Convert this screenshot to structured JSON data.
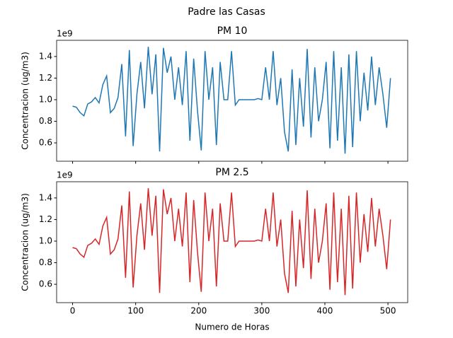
{
  "title": "Padre las Casas",
  "chart_data": [
    {
      "type": "line",
      "title": "PM 10",
      "ylabel": "Concentracion (ug/m3)",
      "y_offset_label": "1e9",
      "xlim": [
        -25.3,
        531.3
      ],
      "ylim": [
        0.43,
        1.55
      ],
      "xticks": [
        0,
        100,
        200,
        300,
        400,
        500
      ],
      "show_xticklabels": false,
      "yticks": [
        0.6,
        0.8,
        {
          "value": 1,
          "label": "1.0"
        },
        1.2,
        1.4
      ],
      "x": [
        0,
        6,
        12,
        18,
        24,
        30,
        36,
        42,
        48,
        54,
        60,
        66,
        72,
        78,
        84,
        90,
        96,
        102,
        108,
        114,
        120,
        126,
        132,
        138,
        144,
        150,
        156,
        162,
        168,
        174,
        180,
        186,
        192,
        198,
        204,
        210,
        216,
        222,
        228,
        234,
        240,
        246,
        252,
        258,
        264,
        270,
        276,
        282,
        288,
        294,
        300,
        306,
        312,
        318,
        324,
        330,
        336,
        342,
        348,
        354,
        360,
        366,
        372,
        378,
        384,
        390,
        396,
        402,
        408,
        414,
        420,
        426,
        432,
        438,
        444,
        450,
        456,
        462,
        468,
        474,
        480,
        486,
        492,
        498,
        504
      ],
      "series": [
        {
          "color": "#1f77b4",
          "values": [
            0.94,
            0.93,
            0.88,
            0.85,
            0.96,
            0.98,
            1.02,
            0.97,
            1.14,
            1.22,
            0.88,
            0.92,
            1.02,
            1.33,
            0.66,
            1.46,
            0.57,
            1.05,
            1.35,
            0.92,
            1.49,
            1.05,
            1.42,
            0.52,
            1.48,
            1.25,
            1.4,
            1.0,
            1.3,
            0.95,
            1.45,
            0.62,
            1.38,
            0.9,
            0.53,
            1.45,
            1.0,
            1.3,
            0.58,
            1.35,
            1.0,
            1.0,
            1.45,
            0.95,
            1.0,
            1.0,
            1.0,
            1.0,
            1.0,
            1.01,
            1.0,
            1.3,
            1.0,
            1.45,
            0.95,
            1.2,
            0.7,
            0.52,
            1.28,
            0.58,
            1.2,
            0.75,
            1.47,
            0.65,
            1.3,
            0.8,
            1.0,
            1.35,
            0.55,
            1.45,
            0.62,
            1.3,
            0.5,
            1.42,
            0.56,
            1.45,
            0.8,
            1.25,
            0.9,
            1.4,
            0.95,
            1.3,
            1.05,
            0.74,
            1.2
          ]
        }
      ]
    },
    {
      "type": "line",
      "title": "PM 2.5",
      "ylabel": "Concentracion (ug/m3)",
      "xlabel": "Numero de Horas",
      "y_offset_label": "1e9",
      "xlim": [
        -25.3,
        531.3
      ],
      "ylim": [
        0.43,
        1.55
      ],
      "xticks": [
        0,
        100,
        200,
        300,
        400,
        500
      ],
      "show_xticklabels": true,
      "yticks": [
        0.6,
        0.8,
        {
          "value": 1,
          "label": "1.0"
        },
        1.2,
        1.4
      ],
      "x": [
        0,
        6,
        12,
        18,
        24,
        30,
        36,
        42,
        48,
        54,
        60,
        66,
        72,
        78,
        84,
        90,
        96,
        102,
        108,
        114,
        120,
        126,
        132,
        138,
        144,
        150,
        156,
        162,
        168,
        174,
        180,
        186,
        192,
        198,
        204,
        210,
        216,
        222,
        228,
        234,
        240,
        246,
        252,
        258,
        264,
        270,
        276,
        282,
        288,
        294,
        300,
        306,
        312,
        318,
        324,
        330,
        336,
        342,
        348,
        354,
        360,
        366,
        372,
        378,
        384,
        390,
        396,
        402,
        408,
        414,
        420,
        426,
        432,
        438,
        444,
        450,
        456,
        462,
        468,
        474,
        480,
        486,
        492,
        498,
        504
      ],
      "series": [
        {
          "color": "#d62728",
          "values": [
            0.94,
            0.93,
            0.88,
            0.85,
            0.96,
            0.98,
            1.02,
            0.97,
            1.14,
            1.22,
            0.88,
            0.92,
            1.02,
            1.33,
            0.66,
            1.46,
            0.57,
            1.05,
            1.35,
            0.92,
            1.49,
            1.05,
            1.42,
            0.52,
            1.48,
            1.25,
            1.4,
            1.0,
            1.3,
            0.95,
            1.45,
            0.62,
            1.38,
            0.9,
            0.53,
            1.45,
            1.0,
            1.3,
            0.58,
            1.35,
            1.0,
            1.0,
            1.45,
            0.95,
            1.0,
            1.0,
            1.0,
            1.0,
            1.0,
            1.01,
            1.0,
            1.3,
            1.0,
            1.45,
            0.95,
            1.2,
            0.7,
            0.52,
            1.28,
            0.58,
            1.2,
            0.75,
            1.47,
            0.65,
            1.3,
            0.8,
            1.0,
            1.35,
            0.55,
            1.45,
            0.62,
            1.3,
            0.5,
            1.42,
            0.56,
            1.45,
            0.8,
            1.25,
            0.9,
            1.4,
            0.95,
            1.3,
            1.05,
            0.74,
            1.2
          ]
        }
      ]
    }
  ]
}
